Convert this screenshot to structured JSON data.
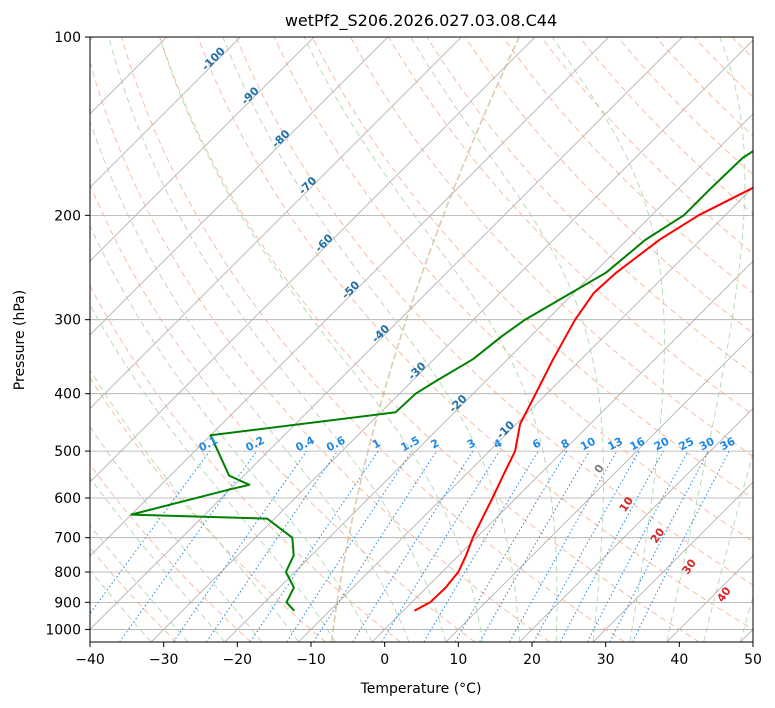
{
  "chart_data": {
    "type": "line",
    "title": "wetPf2_S206.2026.027.03.08.C44",
    "xlabel": "Temperature (°C)",
    "ylabel": "Pressure (hPa)",
    "xlim": [
      -40,
      50
    ],
    "ylim": [
      1050,
      100
    ],
    "y_scale": "log",
    "x_ticks": [
      -40,
      -30,
      -20,
      -10,
      0,
      10,
      20,
      30,
      40,
      50
    ],
    "y_ticks": [
      1000,
      900,
      800,
      700,
      600,
      500,
      400,
      300,
      200,
      100
    ],
    "grid": "horizontal pressure lines and skewed isotherms",
    "series": [
      {
        "role": "temperature",
        "color": "#ff0000",
        "points": [
          [
            930,
            1.5
          ],
          [
            900,
            2.5
          ],
          [
            850,
            2.6
          ],
          [
            800,
            2.2
          ],
          [
            750,
            1.0
          ],
          [
            700,
            -0.5
          ],
          [
            650,
            -1.8
          ],
          [
            600,
            -3.2
          ],
          [
            550,
            -4.8
          ],
          [
            500,
            -6.5
          ],
          [
            450,
            -9.5
          ],
          [
            400,
            -11.5
          ],
          [
            350,
            -13.8
          ],
          [
            300,
            -16.2
          ],
          [
            270,
            -17.3
          ],
          [
            250,
            -17.0
          ],
          [
            220,
            -15.6
          ],
          [
            200,
            -13.6
          ],
          [
            180,
            -10.0
          ],
          [
            160,
            -4.8
          ],
          [
            150,
            -3.2
          ],
          [
            130,
            -1.5
          ],
          [
            110,
            0.8
          ],
          [
            100,
            2.4
          ]
        ]
      },
      {
        "role": "dewpoint",
        "color": "#008000",
        "points": [
          [
            930,
            -14.8
          ],
          [
            900,
            -17.0
          ],
          [
            850,
            -18.0
          ],
          [
            800,
            -21.2
          ],
          [
            750,
            -22.4
          ],
          [
            700,
            -25.0
          ],
          [
            650,
            -31.0
          ],
          [
            640,
            -50.0
          ],
          [
            580,
            -40.0
          ],
          [
            570,
            -38.0
          ],
          [
            550,
            -42.0
          ],
          [
            470,
            -50.0
          ],
          [
            430,
            -28.0
          ],
          [
            400,
            -27.8
          ],
          [
            380,
            -26.7
          ],
          [
            350,
            -24.7
          ],
          [
            320,
            -23.9
          ],
          [
            300,
            -23.0
          ],
          [
            250,
            -18.4
          ],
          [
            220,
            -17.5
          ],
          [
            200,
            -15.6
          ],
          [
            180,
            -15.6
          ],
          [
            160,
            -15.4
          ],
          [
            130,
            -11.5
          ],
          [
            110,
            -8.5
          ],
          [
            100,
            -6.8
          ]
        ]
      }
    ],
    "dry_adiabat_labels": [
      "-100",
      "-90",
      "-80",
      "-70",
      "-60",
      "-50",
      "-40",
      "-30",
      "-20",
      "-10"
    ],
    "mixing_ratio_labels": [
      "0.1",
      "0.2",
      "0.4",
      "0.6",
      "1",
      "1.5",
      "2",
      "3",
      "4",
      "6",
      "8",
      "10",
      "13",
      "16",
      "20",
      "25",
      "30",
      "36"
    ],
    "moist_adiabat_labels": [
      "0",
      "10",
      "20",
      "30",
      "40"
    ],
    "colors": {
      "isotherm": "#aaaaaa",
      "dry_adiabat": "#f4a582",
      "moist_adiabat": "#a6d5a6",
      "mixing_ratio": "#1e88e5",
      "dry_label": "#1f6fa8",
      "moist_label": "#d62728",
      "zero_label": "#808080",
      "ccl_curve": "#d2b48c"
    }
  }
}
